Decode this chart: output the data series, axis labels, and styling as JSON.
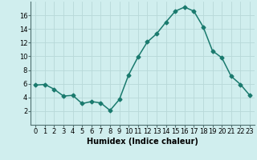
{
  "x": [
    0,
    1,
    2,
    3,
    4,
    5,
    6,
    7,
    8,
    9,
    10,
    11,
    12,
    13,
    14,
    15,
    16,
    17,
    18,
    19,
    20,
    21,
    22,
    23
  ],
  "y": [
    5.8,
    5.9,
    5.2,
    4.2,
    4.3,
    3.1,
    3.4,
    3.2,
    2.1,
    3.7,
    7.3,
    9.9,
    12.1,
    13.3,
    15.0,
    16.6,
    17.2,
    16.6,
    14.3,
    10.8,
    9.8,
    7.1,
    5.9,
    4.3
  ],
  "line_color": "#1a7a6e",
  "marker": "D",
  "marker_size": 2.5,
  "bg_color": "#d0eeee",
  "grid_color": "#b8d8d8",
  "xlabel": "Humidex (Indice chaleur)",
  "ylim": [
    0,
    18
  ],
  "yticks": [
    2,
    4,
    6,
    8,
    10,
    12,
    14,
    16
  ],
  "xticks": [
    0,
    1,
    2,
    3,
    4,
    5,
    6,
    7,
    8,
    9,
    10,
    11,
    12,
    13,
    14,
    15,
    16,
    17,
    18,
    19,
    20,
    21,
    22,
    23
  ],
  "xlim": [
    -0.5,
    23.5
  ],
  "xlabel_fontsize": 7,
  "tick_fontsize": 6,
  "linewidth": 1.1
}
